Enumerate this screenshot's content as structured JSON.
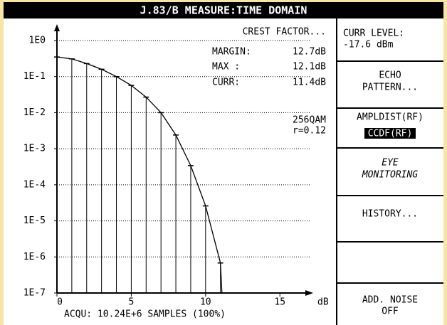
{
  "header": {
    "title": "J.83/B MEASURE:TIME DOMAIN"
  },
  "chart_data": {
    "type": "line",
    "log_y": true,
    "grid": true,
    "color": "#000000",
    "x_label": "dB",
    "xlim": [
      0,
      17
    ],
    "xticks": [
      0,
      5,
      10,
      15
    ],
    "ylim": [
      1e-07,
      1
    ],
    "yticks": [
      {
        "value": 1,
        "label": "1E0"
      },
      {
        "value": 0.1,
        "label": "1E-1"
      },
      {
        "value": 0.01,
        "label": "1E-2"
      },
      {
        "value": 0.001,
        "label": "1E-3"
      },
      {
        "value": 0.0001,
        "label": "1E-4"
      },
      {
        "value": 1e-05,
        "label": "1E-5"
      },
      {
        "value": 1e-06,
        "label": "1E-6"
      },
      {
        "value": 1e-07,
        "label": "1E-7"
      }
    ],
    "x": [
      0,
      1,
      2,
      3,
      4,
      5,
      6,
      7,
      8,
      9,
      10,
      11,
      11.1
    ],
    "values": [
      0.35,
      0.31,
      0.23,
      0.16,
      0.1,
      0.057,
      0.027,
      0.01,
      0.0024,
      0.00034,
      2.6e-05,
      6.8e-07,
      1e-07
    ],
    "annotations": {
      "title": "CREST FACTOR...",
      "rows": [
        {
          "label": "MARGIN:",
          "value": "12.7dB"
        },
        {
          "label": "MAX :",
          "value": "12.1dB"
        },
        {
          "label": "CURR:",
          "value": "11.4dB"
        }
      ],
      "modulation": "256QAM",
      "rolloff": "r=0.12"
    },
    "footer": "ACQU: 10.24E+6 SAMPLES (100%)"
  },
  "menu": [
    {
      "lines": [
        "CURR LEVEL:",
        "-17.6 dBm"
      ]
    },
    {
      "lines": [
        "ECHO",
        "PATTERN..."
      ]
    },
    {
      "lines": [
        "AMPLDIST(RF)",
        "CCDF(RF)"
      ]
    },
    {
      "lines": [
        "EYE",
        "MONITORING"
      ]
    },
    {
      "lines": [
        "HISTORY..."
      ]
    },
    {
      "lines": []
    },
    {
      "lines": [
        "ADD. NOISE",
        "OFF"
      ]
    }
  ]
}
